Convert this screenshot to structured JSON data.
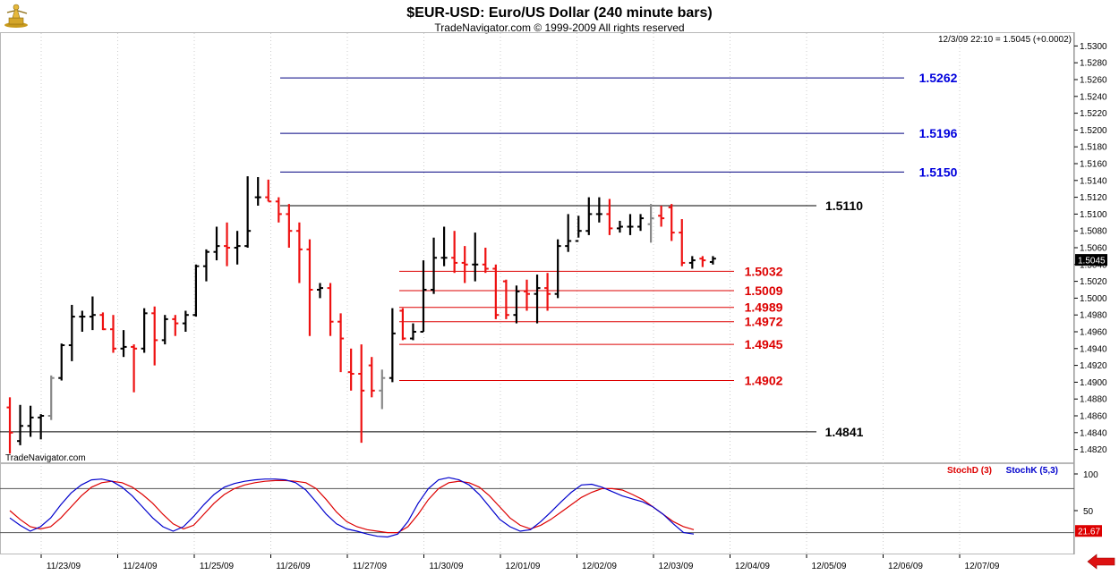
{
  "header": {
    "title": "$EUR-USD:  Euro/US Dollar  (240 minute bars)",
    "subtitle": "TradeNavigator.com © 1999-2009 All rights reserved",
    "quote": "12/3/09 22:10 = 1.5045 (+0.0002)",
    "watermark": "TradeNavigator.com",
    "logo_icon": "gold-statue-icon",
    "nav_icon": "red-left-arrow-icon"
  },
  "colors": {
    "up_bar": "#000000",
    "down_bar": "#ee1111",
    "neutral_bar": "#888888",
    "resistance_line": "#000080",
    "resistance_label": "#0000dd",
    "support_line": "#dd0000",
    "support_label": "#dd0000",
    "pivot": "#000000",
    "stoch_d": "#dd0000",
    "stoch_k": "#0000cc"
  },
  "chart_data": [
    {
      "type": "ohlc",
      "title": "$EUR-USD:  Euro/US Dollar  (240 minute bars)",
      "ylim": [
        1.481,
        1.531
      ],
      "yticks": [
        "1.5300",
        "1.5280",
        "1.5260",
        "1.5240",
        "1.5220",
        "1.5200",
        "1.5180",
        "1.5160",
        "1.5140",
        "1.5120",
        "1.5100",
        "1.5080",
        "1.5060",
        "1.5040",
        "1.5020",
        "1.5000",
        "1.4980",
        "1.4960",
        "1.4940",
        "1.4920",
        "1.4900",
        "1.4880",
        "1.4860",
        "1.4840",
        "1.4820"
      ],
      "current_value": "1.5045",
      "x_dates": [
        "11/23/09",
        "11/24/09",
        "11/25/09",
        "11/26/09",
        "11/27/09",
        "11/30/09",
        "12/01/09",
        "12/02/09",
        "12/03/09",
        "12/04/09",
        "12/05/09",
        "12/06/09",
        "12/07/09"
      ],
      "bars": [
        [
          1.487,
          1.4882,
          1.4815,
          1.484
        ],
        [
          1.483,
          1.4873,
          1.4825,
          1.4848
        ],
        [
          1.4848,
          1.4872,
          1.4835,
          1.4858
        ],
        [
          1.4858,
          1.4862,
          1.4832,
          1.486
        ],
        [
          1.486,
          1.4908,
          1.4855,
          1.4905
        ],
        [
          1.4905,
          1.4946,
          1.4902,
          1.4944
        ],
        [
          1.4944,
          1.4992,
          1.4925,
          1.4978
        ],
        [
          1.4978,
          1.4985,
          1.496,
          1.4978
        ],
        [
          1.4978,
          1.5002,
          1.4962,
          1.498
        ],
        [
          1.498,
          1.4983,
          1.4962,
          1.4963
        ],
        [
          1.4963,
          1.498,
          1.4935,
          1.494
        ],
        [
          1.494,
          1.4962,
          1.493,
          1.4942
        ],
        [
          1.4942,
          1.4945,
          1.4888,
          1.494
        ],
        [
          1.494,
          1.4988,
          1.4935,
          1.4982
        ],
        [
          1.4982,
          1.499,
          1.492,
          1.495
        ],
        [
          1.495,
          1.498,
          1.4945,
          1.4975
        ],
        [
          1.4975,
          1.498,
          1.4955,
          1.497
        ],
        [
          1.497,
          1.4985,
          1.496,
          1.498
        ],
        [
          1.498,
          1.504,
          1.4978,
          1.5038
        ],
        [
          1.5038,
          1.5058,
          1.502,
          1.5055
        ],
        [
          1.5055,
          1.5085,
          1.5045,
          1.5062
        ],
        [
          1.5062,
          1.509,
          1.5038,
          1.506
        ],
        [
          1.506,
          1.508,
          1.504,
          1.5062
        ],
        [
          1.5062,
          1.5145,
          1.506,
          1.508
        ],
        [
          1.512,
          1.5144,
          1.511,
          1.512
        ],
        [
          1.512,
          1.5141,
          1.5115,
          1.5115
        ],
        [
          1.5115,
          1.512,
          1.509,
          1.51
        ],
        [
          1.51,
          1.5112,
          1.506,
          1.508
        ],
        [
          1.508,
          1.509,
          1.5018,
          1.5058
        ],
        [
          1.5058,
          1.507,
          1.4955,
          1.501
        ],
        [
          1.501,
          1.5018,
          1.5,
          1.5012
        ],
        [
          1.5012,
          1.5018,
          1.4955,
          1.4972
        ],
        [
          1.4972,
          1.4982,
          1.4912,
          1.4952
        ],
        [
          1.4912,
          1.494,
          1.489,
          1.491
        ],
        [
          1.491,
          1.4945,
          1.4828,
          1.489
        ],
        [
          1.492,
          1.493,
          1.4882,
          1.489
        ],
        [
          1.489,
          1.4915,
          1.4868,
          1.4905
        ],
        [
          1.4905,
          1.4988,
          1.49,
          1.4958
        ],
        [
          1.4985,
          1.4988,
          1.495,
          1.4952
        ],
        [
          1.4952,
          1.497,
          1.495,
          1.496
        ],
        [
          1.496,
          1.5045,
          1.496,
          1.501
        ],
        [
          1.501,
          1.5072,
          1.5005,
          1.5048
        ],
        [
          1.5048,
          1.5085,
          1.5038,
          1.5048
        ],
        [
          1.5048,
          1.508,
          1.503,
          1.5042
        ],
        [
          1.5042,
          1.5062,
          1.5018,
          1.504
        ],
        [
          1.504,
          1.5078,
          1.502,
          1.504
        ],
        [
          1.504,
          1.506,
          1.503,
          1.5035
        ],
        [
          1.5035,
          1.504,
          1.4975,
          1.498
        ],
        [
          1.502,
          1.5022,
          1.4975,
          1.498
        ],
        [
          1.498,
          1.5015,
          1.497,
          1.5008
        ],
        [
          1.5008,
          1.5022,
          1.4985,
          1.5005
        ],
        [
          1.5005,
          1.5028,
          1.497,
          1.5012
        ],
        [
          1.5012,
          1.503,
          1.4985,
          1.5005
        ],
        [
          1.5005,
          1.507,
          1.5,
          1.5062
        ],
        [
          1.5062,
          1.51,
          1.5055,
          1.5068
        ],
        [
          1.5068,
          1.5098,
          1.5072,
          1.508
        ],
        [
          1.508,
          1.512,
          1.5075,
          1.51
        ],
        [
          1.51,
          1.512,
          1.509,
          1.51
        ],
        [
          1.51,
          1.5118,
          1.5075,
          1.5083
        ],
        [
          1.5083,
          1.5092,
          1.5078,
          1.5085
        ],
        [
          1.5085,
          1.51,
          1.5075,
          1.5085
        ],
        [
          1.5085,
          1.51,
          1.508,
          1.5095
        ],
        [
          1.5088,
          1.5112,
          1.5066,
          1.5095
        ],
        [
          1.5098,
          1.511,
          1.5085,
          1.5095
        ],
        [
          1.5108,
          1.5112,
          1.5068,
          1.5078
        ],
        [
          1.5078,
          1.5094,
          1.5038,
          1.5042
        ],
        [
          1.5042,
          1.505,
          1.5035,
          1.5045
        ],
        [
          1.5047,
          1.505,
          1.5037,
          1.5045
        ],
        [
          1.5043,
          1.505,
          1.504,
          1.5047
        ]
      ],
      "levels": [
        {
          "value": 1.5262,
          "label": "1.5262",
          "kind": "resistance"
        },
        {
          "value": 1.5196,
          "label": "1.5196",
          "kind": "resistance"
        },
        {
          "value": 1.515,
          "label": "1.5150",
          "kind": "resistance"
        },
        {
          "value": 1.511,
          "label": "1.5110",
          "kind": "pivot"
        },
        {
          "value": 1.5032,
          "label": "1.5032",
          "kind": "support"
        },
        {
          "value": 1.5009,
          "label": "1.5009",
          "kind": "support"
        },
        {
          "value": 1.4989,
          "label": "1.4989",
          "kind": "support"
        },
        {
          "value": 1.4972,
          "label": "1.4972",
          "kind": "support"
        },
        {
          "value": 1.4945,
          "label": "1.4945",
          "kind": "support"
        },
        {
          "value": 1.4902,
          "label": "1.4902",
          "kind": "support"
        },
        {
          "value": 1.4841,
          "label": "1.4841",
          "kind": "pivot"
        }
      ]
    },
    {
      "type": "line",
      "ylim": [
        0,
        100
      ],
      "yticks": [
        "100",
        "50"
      ],
      "reference_lines": [
        80,
        20
      ],
      "current_value": "21.67",
      "series": [
        {
          "name": "StochD (3)",
          "values": [
            50,
            38,
            28,
            25,
            28,
            40,
            55,
            70,
            82,
            88,
            90,
            88,
            82,
            72,
            60,
            45,
            32,
            25,
            30,
            45,
            60,
            72,
            80,
            85,
            88,
            90,
            91,
            91,
            90,
            88,
            80,
            65,
            48,
            35,
            28,
            24,
            22,
            20,
            20,
            28,
            45,
            65,
            80,
            88,
            90,
            88,
            82,
            70,
            55,
            40,
            30,
            25,
            30,
            38,
            48,
            58,
            68,
            75,
            80,
            80,
            78,
            72,
            65,
            55,
            45,
            35,
            28,
            24
          ]
        },
        {
          "name": "StochK (5,3)",
          "values": [
            40,
            30,
            22,
            28,
            40,
            58,
            74,
            85,
            92,
            93,
            90,
            82,
            70,
            55,
            40,
            28,
            22,
            28,
            42,
            58,
            72,
            82,
            87,
            90,
            92,
            93,
            93,
            92,
            88,
            78,
            62,
            45,
            32,
            25,
            22,
            18,
            15,
            14,
            18,
            35,
            60,
            80,
            92,
            95,
            92,
            85,
            72,
            55,
            38,
            28,
            22,
            24,
            35,
            48,
            62,
            75,
            85,
            86,
            82,
            76,
            70,
            66,
            62,
            55,
            45,
            32,
            20,
            18
          ]
        }
      ]
    }
  ]
}
